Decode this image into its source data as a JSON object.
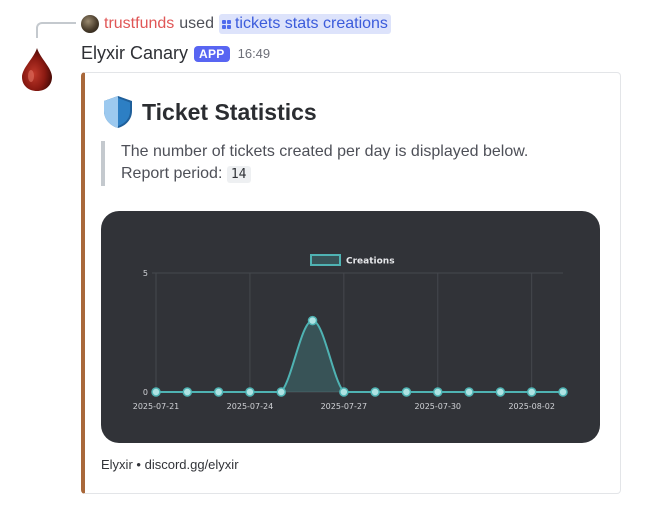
{
  "reply": {
    "username": "trustfunds",
    "verb": "used",
    "command": "tickets stats creations"
  },
  "message": {
    "author": "Elyxir Canary",
    "badge": "APP",
    "timestamp": "16:49"
  },
  "embed": {
    "accent_color": "#a9683a",
    "title": "Ticket Statistics",
    "title_icon": "shield-icon",
    "description_line1": "The number of tickets created per day is displayed below.",
    "period_label": "Report period:",
    "period_value": "14",
    "footer_name": "Elyxir",
    "footer_separator": "•",
    "footer_link": "discord.gg/elyxir"
  },
  "chart_data": {
    "type": "area",
    "x": [
      "2025-07-21",
      "2025-07-22",
      "2025-07-23",
      "2025-07-24",
      "2025-07-25",
      "2025-07-26",
      "2025-07-27",
      "2025-07-28",
      "2025-07-29",
      "2025-07-30",
      "2025-07-31",
      "2025-08-01",
      "2025-08-02",
      "2025-08-03"
    ],
    "tick_labels": [
      "2025-07-21",
      "2025-07-24",
      "2025-07-27",
      "2025-07-30",
      "2025-08-02"
    ],
    "series": [
      {
        "name": "Creations",
        "values": [
          0,
          0,
          0,
          0,
          0,
          3,
          0,
          0,
          0,
          0,
          0,
          0,
          0,
          0
        ],
        "color": "#4fb3b3"
      }
    ],
    "ylim": [
      0,
      5
    ],
    "y_ticks": [
      "0",
      "5"
    ],
    "legend": "top",
    "grid": true
  }
}
